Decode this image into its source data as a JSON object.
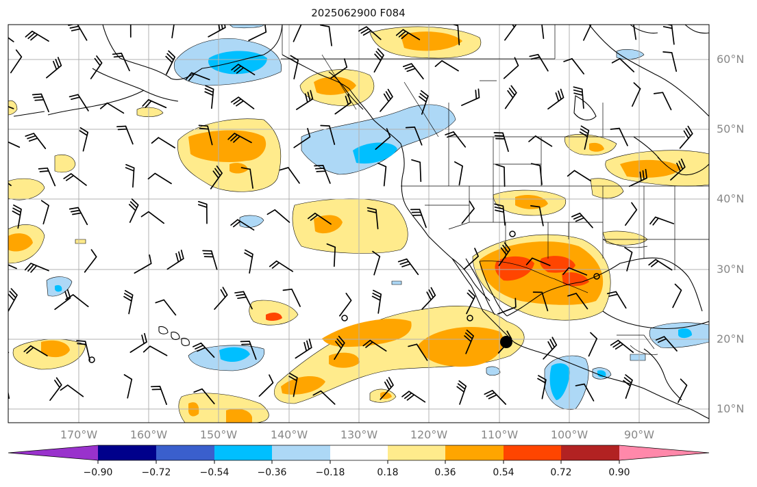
{
  "title": "2025062900 F084",
  "latitude_labels": [
    "60°N",
    "50°N",
    "40°N",
    "30°N",
    "20°N",
    "10°N"
  ],
  "longitude_labels": [
    "170°W",
    "160°W",
    "150°W",
    "140°W",
    "130°W",
    "120°W",
    "110°W",
    "100°W",
    "90°W"
  ],
  "colorbar": {
    "ticks": [
      "−0.90",
      "−0.72",
      "−0.54",
      "−0.36",
      "−0.18",
      "0.18",
      "0.36",
      "0.54",
      "0.72",
      "0.90"
    ],
    "colors": [
      "#9932cc",
      "#00008b",
      "#3a5fcd",
      "#00bfff",
      "#add8f6",
      "#ffffff",
      "#ffeb8c",
      "#ffa500",
      "#ff4500",
      "#b22222",
      "#ff88aa"
    ]
  },
  "map_colors": {
    "grid": "#b0b0b0",
    "coast": "#000000",
    "barb": "#000000"
  }
}
